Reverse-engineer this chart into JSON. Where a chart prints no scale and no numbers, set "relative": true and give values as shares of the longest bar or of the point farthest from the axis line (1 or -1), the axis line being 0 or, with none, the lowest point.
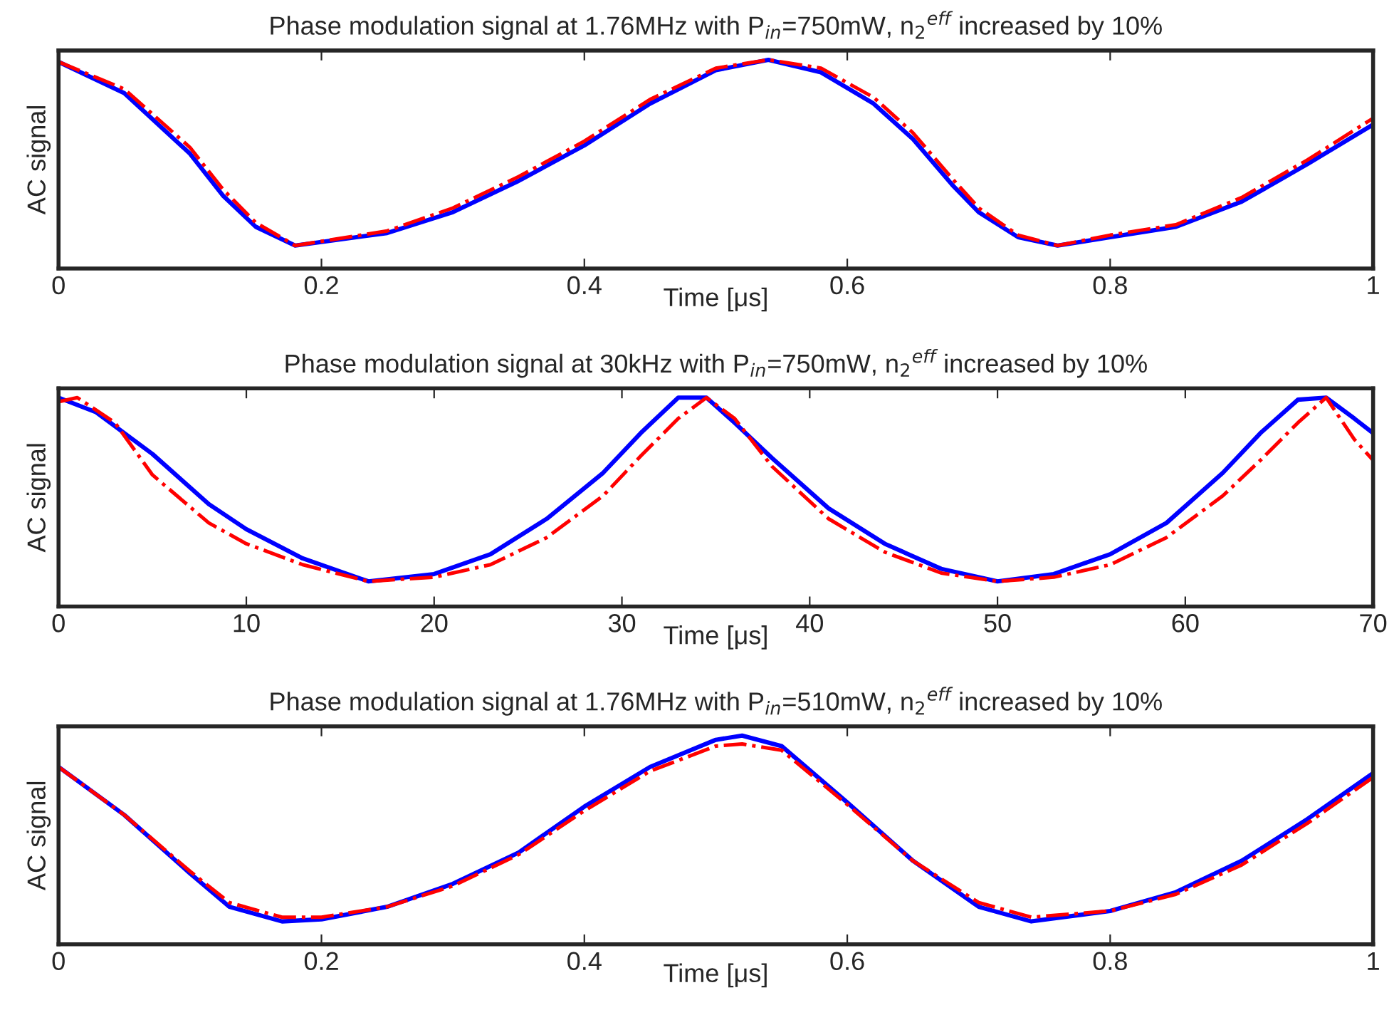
{
  "chart_data": [
    {
      "type": "line",
      "relative": true,
      "title": "Phase modulation signal at 1.76MHz with P$_{in}$=750mW, n$_{2}$$^{eff}$ increased by 10%",
      "xlabel": "Time [μs]",
      "ylabel": "AC signal",
      "xlim": [
        0,
        1
      ],
      "xticks": [
        0,
        0.2,
        0.4,
        0.6,
        0.8,
        1
      ],
      "grid": false,
      "legend": false,
      "tick_labels": "x",
      "series": [
        {
          "color": "#0000ff",
          "line_style": "solid",
          "x": [
            0,
            0.05,
            0.1,
            0.125,
            0.15,
            0.18,
            0.25,
            0.3,
            0.35,
            0.4,
            0.45,
            0.5,
            0.54,
            0.58,
            0.62,
            0.65,
            0.68,
            0.7,
            0.73,
            0.76,
            0.8,
            0.85,
            0.9,
            0.95,
            1
          ],
          "values": [
            0.99,
            0.84,
            0.55,
            0.35,
            0.2,
            0.11,
            0.17,
            0.27,
            0.42,
            0.59,
            0.79,
            0.95,
            1,
            0.94,
            0.79,
            0.62,
            0.4,
            0.27,
            0.15,
            0.11,
            0.15,
            0.2,
            0.32,
            0.5,
            0.69
          ]
        },
        {
          "color": "#ff0000",
          "line_style": "dashed",
          "x": [
            0,
            0.05,
            0.1,
            0.125,
            0.15,
            0.18,
            0.25,
            0.3,
            0.35,
            0.4,
            0.45,
            0.5,
            0.54,
            0.58,
            0.62,
            0.65,
            0.68,
            0.7,
            0.73,
            0.76,
            0.8,
            0.85,
            0.9,
            0.95,
            1
          ],
          "values": [
            0.99,
            0.86,
            0.58,
            0.38,
            0.22,
            0.11,
            0.18,
            0.29,
            0.44,
            0.61,
            0.81,
            0.96,
            1,
            0.96,
            0.82,
            0.65,
            0.43,
            0.29,
            0.16,
            0.11,
            0.16,
            0.21,
            0.34,
            0.52,
            0.72
          ]
        }
      ]
    },
    {
      "type": "line",
      "relative": true,
      "title": "Phase modulation signal at 30kHz with P$_{in}$=750mW, n$_{2}$$^{eff}$ increased by 10%",
      "xlabel": "Time [μs]",
      "ylabel": "AC signal",
      "xlim": [
        0,
        70
      ],
      "xticks": [
        0,
        10,
        20,
        30,
        40,
        50,
        60,
        70
      ],
      "grid": false,
      "legend": false,
      "tick_labels": "x",
      "series": [
        {
          "color": "#0000ff",
          "line_style": "solid",
          "x": [
            0,
            2,
            5,
            8,
            10,
            13,
            16.5,
            20,
            23,
            26,
            29,
            31,
            33,
            34.5,
            36,
            38,
            41,
            44,
            47,
            50,
            53,
            56,
            59,
            62,
            64,
            66,
            67.5,
            69,
            70
          ],
          "values": [
            1,
            0.93,
            0.73,
            0.49,
            0.37,
            0.23,
            0.12,
            0.155,
            0.25,
            0.42,
            0.64,
            0.83,
            1,
            1,
            0.88,
            0.71,
            0.47,
            0.3,
            0.18,
            0.12,
            0.155,
            0.25,
            0.4,
            0.64,
            0.83,
            0.99,
            1,
            0.9,
            0.83
          ]
        },
        {
          "color": "#ff0000",
          "line_style": "dashed",
          "x": [
            0,
            1,
            3,
            5,
            8,
            10,
            13,
            16.5,
            20,
            23,
            26,
            29,
            31,
            33,
            34.5,
            36,
            38,
            41,
            44,
            47,
            50,
            53,
            56,
            59,
            62,
            64,
            66,
            67.5,
            69,
            70
          ],
          "values": [
            0.98,
            1,
            0.88,
            0.63,
            0.4,
            0.3,
            0.2,
            0.12,
            0.14,
            0.2,
            0.33,
            0.53,
            0.72,
            0.9,
            1,
            0.9,
            0.67,
            0.42,
            0.26,
            0.16,
            0.12,
            0.14,
            0.2,
            0.33,
            0.53,
            0.7,
            0.88,
            1,
            0.8,
            0.7
          ]
        }
      ]
    },
    {
      "type": "line",
      "relative": true,
      "title": "Phase modulation signal at 1.76MHz with P$_{in}$=510mW, n$_{2}$$^{eff}$ increased by 10%",
      "xlabel": "Time [μs]",
      "ylabel": "AC signal",
      "xlim": [
        0,
        1
      ],
      "xticks": [
        0,
        0.2,
        0.4,
        0.6,
        0.8,
        1
      ],
      "grid": false,
      "legend": false,
      "tick_labels": "x",
      "series": [
        {
          "color": "#0000ff",
          "line_style": "solid",
          "x": [
            0,
            0.05,
            0.1,
            0.13,
            0.17,
            0.2,
            0.25,
            0.3,
            0.35,
            0.4,
            0.45,
            0.5,
            0.52,
            0.55,
            0.6,
            0.65,
            0.7,
            0.74,
            0.8,
            0.85,
            0.9,
            0.95,
            1
          ],
          "values": [
            0.85,
            0.62,
            0.34,
            0.18,
            0.11,
            0.12,
            0.18,
            0.29,
            0.44,
            0.66,
            0.85,
            0.98,
            1,
            0.95,
            0.68,
            0.4,
            0.18,
            0.11,
            0.16,
            0.25,
            0.4,
            0.6,
            0.82
          ]
        },
        {
          "color": "#ff0000",
          "line_style": "dashed",
          "x": [
            0,
            0.05,
            0.1,
            0.13,
            0.17,
            0.2,
            0.25,
            0.3,
            0.35,
            0.4,
            0.45,
            0.5,
            0.52,
            0.55,
            0.6,
            0.65,
            0.7,
            0.74,
            0.8,
            0.85,
            0.9,
            0.95,
            1
          ],
          "values": [
            0.85,
            0.62,
            0.35,
            0.2,
            0.13,
            0.13,
            0.18,
            0.28,
            0.43,
            0.64,
            0.83,
            0.95,
            0.96,
            0.93,
            0.67,
            0.4,
            0.2,
            0.13,
            0.16,
            0.24,
            0.38,
            0.58,
            0.8
          ]
        }
      ]
    }
  ]
}
